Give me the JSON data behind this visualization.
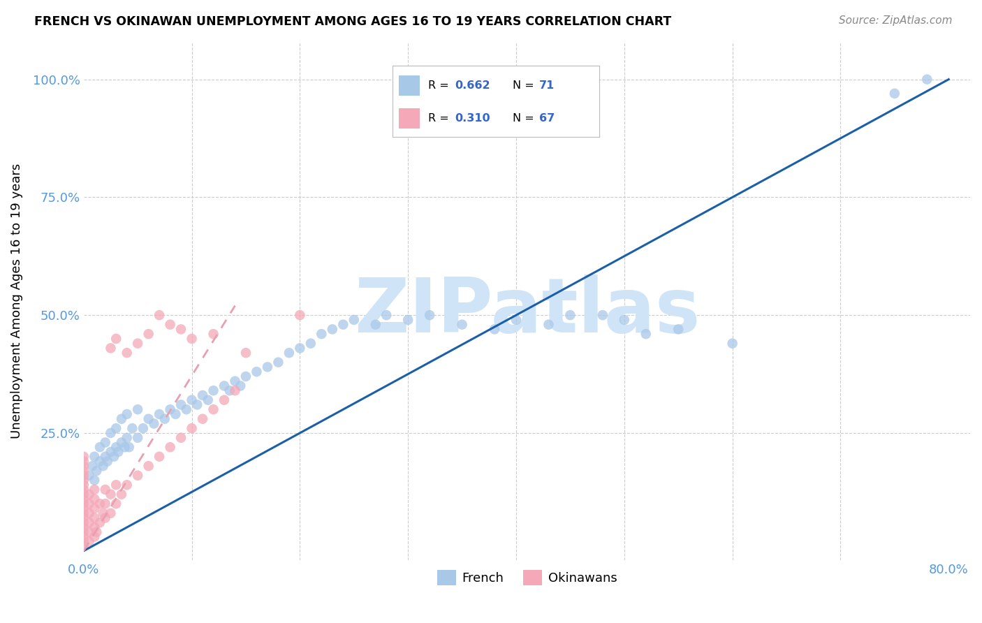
{
  "title": "FRENCH VS OKINAWAN UNEMPLOYMENT AMONG AGES 16 TO 19 YEARS CORRELATION CHART",
  "source": "Source: ZipAtlas.com",
  "ylabel": "Unemployment Among Ages 16 to 19 years",
  "xlim": [
    0.0,
    0.82
  ],
  "ylim": [
    -0.02,
    1.08
  ],
  "french_color": "#a8c8e8",
  "okinawan_color": "#f4a8b8",
  "french_line_color": "#1a5fa8",
  "okinawan_line_color": "#e8a0b0",
  "R_french": 0.662,
  "N_french": 71,
  "R_okinawan": 0.31,
  "N_okinawan": 67,
  "watermark": "ZIPatlas",
  "watermark_color": "#d0e4f8",
  "french_scatter_x": [
    0.005,
    0.008,
    0.01,
    0.01,
    0.012,
    0.015,
    0.015,
    0.018,
    0.02,
    0.02,
    0.022,
    0.025,
    0.025,
    0.028,
    0.03,
    0.03,
    0.032,
    0.035,
    0.035,
    0.038,
    0.04,
    0.04,
    0.042,
    0.045,
    0.05,
    0.05,
    0.055,
    0.06,
    0.065,
    0.07,
    0.075,
    0.08,
    0.085,
    0.09,
    0.095,
    0.1,
    0.105,
    0.11,
    0.115,
    0.12,
    0.13,
    0.135,
    0.14,
    0.145,
    0.15,
    0.16,
    0.17,
    0.18,
    0.19,
    0.2,
    0.21,
    0.22,
    0.23,
    0.24,
    0.25,
    0.27,
    0.28,
    0.3,
    0.32,
    0.35,
    0.38,
    0.4,
    0.43,
    0.45,
    0.48,
    0.5,
    0.52,
    0.55,
    0.6,
    0.75,
    0.78
  ],
  "french_scatter_y": [
    0.16,
    0.18,
    0.15,
    0.2,
    0.17,
    0.19,
    0.22,
    0.18,
    0.2,
    0.23,
    0.19,
    0.21,
    0.25,
    0.2,
    0.22,
    0.26,
    0.21,
    0.23,
    0.28,
    0.22,
    0.24,
    0.29,
    0.22,
    0.26,
    0.24,
    0.3,
    0.26,
    0.28,
    0.27,
    0.29,
    0.28,
    0.3,
    0.29,
    0.31,
    0.3,
    0.32,
    0.31,
    0.33,
    0.32,
    0.34,
    0.35,
    0.34,
    0.36,
    0.35,
    0.37,
    0.38,
    0.39,
    0.4,
    0.42,
    0.43,
    0.44,
    0.46,
    0.47,
    0.48,
    0.49,
    0.48,
    0.5,
    0.49,
    0.5,
    0.48,
    0.47,
    0.49,
    0.48,
    0.5,
    0.5,
    0.49,
    0.46,
    0.47,
    0.44,
    0.97,
    1.0
  ],
  "okinawan_scatter_x": [
    0.0,
    0.0,
    0.0,
    0.0,
    0.0,
    0.0,
    0.0,
    0.0,
    0.0,
    0.0,
    0.0,
    0.0,
    0.0,
    0.0,
    0.0,
    0.0,
    0.0,
    0.0,
    0.0,
    0.0,
    0.005,
    0.005,
    0.005,
    0.005,
    0.005,
    0.005,
    0.01,
    0.01,
    0.01,
    0.01,
    0.01,
    0.01,
    0.012,
    0.015,
    0.015,
    0.018,
    0.02,
    0.02,
    0.02,
    0.025,
    0.025,
    0.03,
    0.03,
    0.035,
    0.04,
    0.05,
    0.06,
    0.07,
    0.08,
    0.09,
    0.1,
    0.11,
    0.12,
    0.13,
    0.14,
    0.025,
    0.03,
    0.04,
    0.05,
    0.06,
    0.07,
    0.08,
    0.09,
    0.1,
    0.12,
    0.15,
    0.2
  ],
  "okinawan_scatter_y": [
    0.01,
    0.02,
    0.03,
    0.04,
    0.05,
    0.06,
    0.07,
    0.08,
    0.09,
    0.1,
    0.11,
    0.12,
    0.13,
    0.14,
    0.15,
    0.16,
    0.17,
    0.18,
    0.19,
    0.2,
    0.02,
    0.04,
    0.06,
    0.08,
    0.1,
    0.12,
    0.03,
    0.05,
    0.07,
    0.09,
    0.11,
    0.13,
    0.04,
    0.06,
    0.1,
    0.08,
    0.07,
    0.1,
    0.13,
    0.08,
    0.12,
    0.1,
    0.14,
    0.12,
    0.14,
    0.16,
    0.18,
    0.2,
    0.22,
    0.24,
    0.26,
    0.28,
    0.3,
    0.32,
    0.34,
    0.43,
    0.45,
    0.42,
    0.44,
    0.46,
    0.5,
    0.48,
    0.47,
    0.45,
    0.46,
    0.42,
    0.5
  ],
  "french_line_x": [
    0.0,
    0.8
  ],
  "french_line_y": [
    0.0,
    1.0
  ],
  "okinawan_line_x": [
    0.0,
    0.14
  ],
  "okinawan_line_y": [
    0.0,
    0.52
  ]
}
